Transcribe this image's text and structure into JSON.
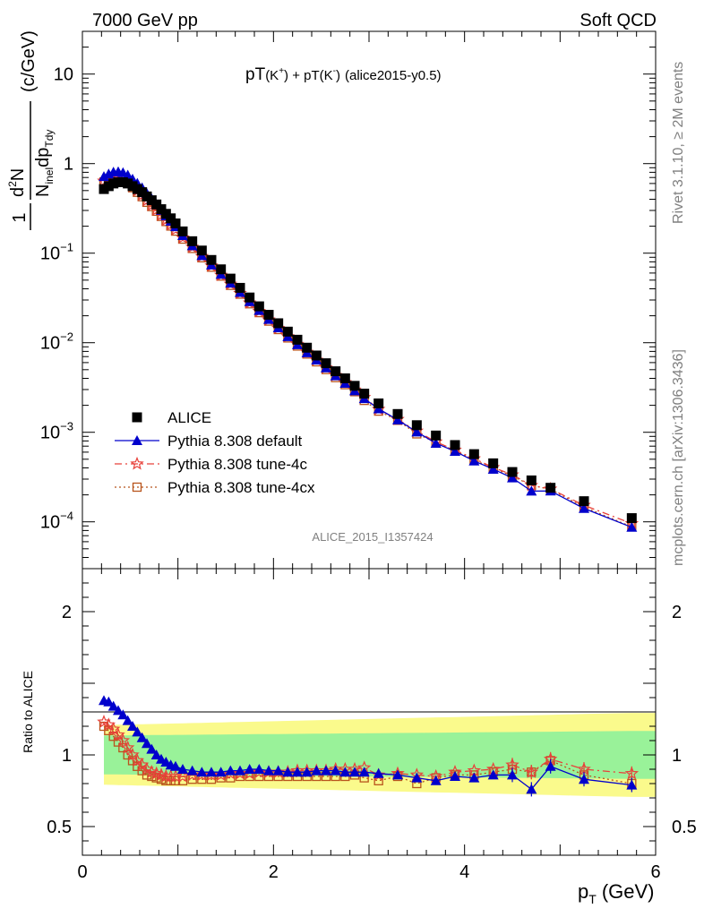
{
  "header": {
    "left": "7000 GeV pp",
    "right": "Soft QCD"
  },
  "side_labels": {
    "rivet": "Rivet 3.1.10, ≥ 2M events",
    "mcplots": "mcplots.cern.ch [arXiv:1306.3436]"
  },
  "watermark": "ALICE_2015_I1357424",
  "title_parts": {
    "pt1": "pT",
    "k1": "(K",
    "k1sup": "+",
    "k1close": ")",
    "plus": " + pT(K",
    "k2sup": "-",
    "k2close": ")",
    "tag": "(alice2015-y0.5)"
  },
  "ylabel": {
    "one": "1",
    "num": "d",
    "num_exp": "2",
    "num_n": "N",
    "den_n": "N",
    "den_sub": "inel",
    "den_dp": "dp",
    "den_sub2": "Tdy",
    "unit": "(c/GeV)"
  },
  "xlabel": {
    "p": "p",
    "sub": "T",
    "unit": "(GeV)"
  },
  "ratio_ylabel": "Ratio to ALICE",
  "colors": {
    "data": "#000000",
    "default": "#0000cc",
    "tune4c": "#e8413a",
    "tune4cx": "#b8541c",
    "band_inner": "#99f299",
    "band_outer": "#fafa8c"
  },
  "chart_data": {
    "type": "scatter",
    "title": "pT(K+) + pT(K-) (alice2015-y0.5)",
    "xlabel": "p_T (GeV)",
    "ylabel": "1/N_inel d2N/dp_T dy (c/GeV)",
    "xlim": [
      0,
      6
    ],
    "ylim_main": [
      3e-05,
      30
    ],
    "ylim_ratio": [
      0.3,
      2.3
    ],
    "y_scale_main": "log",
    "legend_position": "left-center",
    "x_ticks": [
      "0",
      "2",
      "4",
      "6"
    ],
    "y_ticks_main": [
      "10",
      "1",
      "10-1",
      "10-2",
      "10-3",
      "10-4"
    ],
    "y_ticks_ratio": [
      "0.5",
      "1",
      "2"
    ],
    "x": [
      0.225,
      0.275,
      0.325,
      0.375,
      0.425,
      0.475,
      0.525,
      0.575,
      0.625,
      0.675,
      0.725,
      0.775,
      0.825,
      0.875,
      0.925,
      0.975,
      1.05,
      1.15,
      1.25,
      1.35,
      1.45,
      1.55,
      1.65,
      1.75,
      1.85,
      1.95,
      2.05,
      2.15,
      2.25,
      2.35,
      2.45,
      2.55,
      2.65,
      2.75,
      2.85,
      2.95,
      3.1,
      3.3,
      3.5,
      3.7,
      3.9,
      4.1,
      4.3,
      4.5,
      4.7,
      4.9,
      5.25,
      5.75
    ],
    "series": [
      {
        "name": "ALICE",
        "marker": "square",
        "values": [
          0.52,
          0.56,
          0.6,
          0.62,
          0.62,
          0.6,
          0.56,
          0.52,
          0.48,
          0.43,
          0.39,
          0.35,
          0.31,
          0.275,
          0.245,
          0.215,
          0.175,
          0.136,
          0.107,
          0.084,
          0.066,
          0.052,
          0.041,
          0.032,
          0.0255,
          0.0205,
          0.0165,
          0.0133,
          0.0108,
          0.0088,
          0.0072,
          0.0059,
          0.0048,
          0.004,
          0.0033,
          0.0027,
          0.0021,
          0.0016,
          0.0012,
          0.00092,
          0.00072,
          0.00057,
          0.00045,
          0.00036,
          0.00029,
          0.00024,
          0.00017,
          0.00011
        ],
        "band_inner": 0.14,
        "band_outer": 0.22
      },
      {
        "name": "Pythia 8.308 default",
        "marker": "triangle",
        "ratio": [
          1.38,
          1.37,
          1.34,
          1.31,
          1.28,
          1.24,
          1.2,
          1.16,
          1.12,
          1.08,
          1.04,
          1.0,
          0.97,
          0.95,
          0.93,
          0.92,
          0.9,
          0.89,
          0.88,
          0.88,
          0.88,
          0.89,
          0.89,
          0.9,
          0.9,
          0.89,
          0.89,
          0.88,
          0.88,
          0.88,
          0.89,
          0.89,
          0.89,
          0.88,
          0.88,
          0.88,
          0.87,
          0.86,
          0.84,
          0.82,
          0.85,
          0.84,
          0.86,
          0.86,
          0.76,
          0.92,
          0.83,
          0.79
        ]
      },
      {
        "name": "Pythia 8.308 tune-4c",
        "marker": "star",
        "ratio": [
          1.23,
          1.21,
          1.18,
          1.14,
          1.1,
          1.05,
          1.0,
          0.96,
          0.93,
          0.9,
          0.88,
          0.87,
          0.86,
          0.85,
          0.85,
          0.85,
          0.85,
          0.86,
          0.86,
          0.86,
          0.86,
          0.87,
          0.87,
          0.87,
          0.88,
          0.88,
          0.88,
          0.88,
          0.89,
          0.89,
          0.89,
          0.89,
          0.9,
          0.9,
          0.9,
          0.91,
          0.86,
          0.87,
          0.86,
          0.85,
          0.88,
          0.89,
          0.9,
          0.93,
          0.88,
          0.97,
          0.9,
          0.87
        ]
      },
      {
        "name": "Pythia 8.308 tune-4cx",
        "marker": "open-square",
        "ratio": [
          1.2,
          1.17,
          1.13,
          1.09,
          1.05,
          1.0,
          0.96,
          0.92,
          0.89,
          0.86,
          0.85,
          0.84,
          0.83,
          0.82,
          0.82,
          0.82,
          0.82,
          0.83,
          0.83,
          0.83,
          0.84,
          0.84,
          0.85,
          0.85,
          0.85,
          0.85,
          0.85,
          0.85,
          0.85,
          0.85,
          0.85,
          0.85,
          0.85,
          0.85,
          0.86,
          0.84,
          0.82,
          0.85,
          0.8,
          0.84,
          0.86,
          0.86,
          0.88,
          0.9,
          0.88,
          0.96,
          0.86,
          0.8
        ]
      }
    ]
  }
}
